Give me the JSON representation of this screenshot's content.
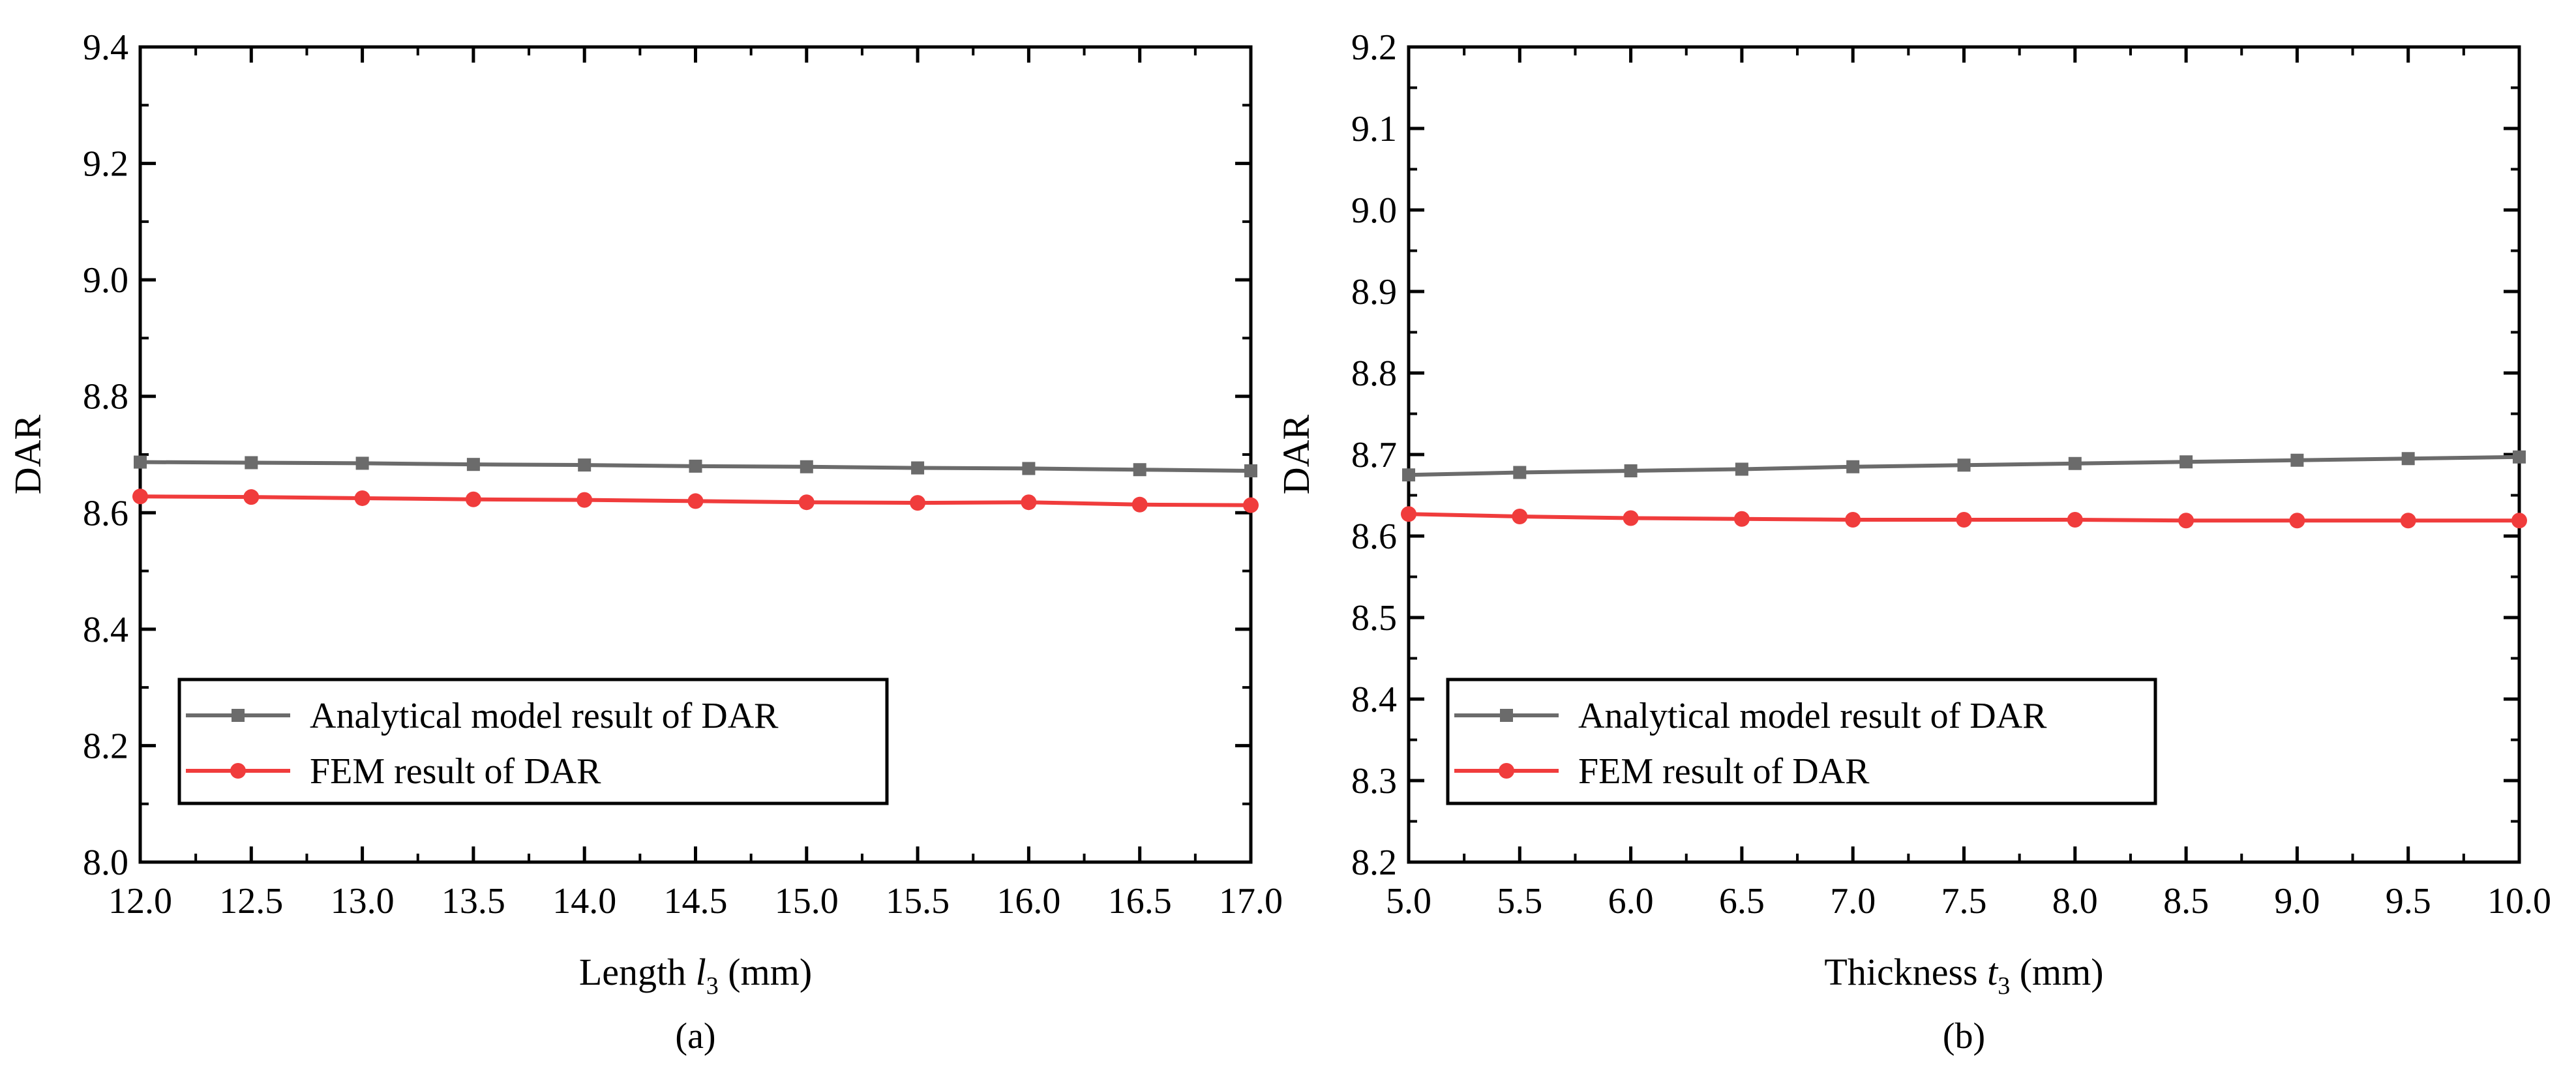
{
  "chart_data": [
    {
      "type": "line",
      "panel_label": "(a)",
      "xlabel": {
        "main": "Length ",
        "var": "l",
        "sub": "3",
        "unit": " (mm)"
      },
      "ylabel": "DAR",
      "xlim": [
        12.0,
        17.0
      ],
      "ylim": [
        8.0,
        9.4
      ],
      "xticks": [
        12.0,
        12.5,
        13.0,
        13.5,
        14.0,
        14.5,
        15.0,
        15.5,
        16.0,
        16.5,
        17.0
      ],
      "xtick_labels": [
        "12.0",
        "12.5",
        "13.0",
        "13.5",
        "14.0",
        "14.5",
        "15.0",
        "15.5",
        "16.0",
        "16.5",
        "17.0"
      ],
      "yticks": [
        8.0,
        8.2,
        8.4,
        8.6,
        8.8,
        9.0,
        9.2,
        9.4
      ],
      "ytick_labels": [
        "8.0",
        "8.2",
        "8.4",
        "8.6",
        "8.8",
        "9.0",
        "9.2",
        "9.4"
      ],
      "x": [
        12.0,
        12.5,
        13.0,
        13.5,
        14.0,
        14.5,
        15.0,
        15.5,
        16.0,
        16.5,
        17.0
      ],
      "series": [
        {
          "name": "Analytical model result of DAR",
          "color": "#6b6b6b",
          "marker": "square",
          "values": [
            8.687,
            8.686,
            8.685,
            8.683,
            8.682,
            8.68,
            8.679,
            8.677,
            8.676,
            8.674,
            8.672
          ]
        },
        {
          "name": "FEM result of DAR",
          "color": "#f03c3c",
          "marker": "circle",
          "values": [
            8.628,
            8.627,
            8.625,
            8.623,
            8.622,
            8.62,
            8.618,
            8.617,
            8.618,
            8.614,
            8.613
          ]
        }
      ],
      "legend_position": "lower-left"
    },
    {
      "type": "line",
      "panel_label": "(b)",
      "xlabel": {
        "main": "Thickness ",
        "var": "t",
        "sub": "3",
        "unit": " (mm)"
      },
      "ylabel": "DAR",
      "xlim": [
        5.0,
        10.0
      ],
      "ylim": [
        8.2,
        9.2
      ],
      "xticks": [
        5.0,
        5.5,
        6.0,
        6.5,
        7.0,
        7.5,
        8.0,
        8.5,
        9.0,
        9.5,
        10.0
      ],
      "xtick_labels": [
        "5.0",
        "5.5",
        "6.0",
        "6.5",
        "7.0",
        "7.5",
        "8.0",
        "8.5",
        "9.0",
        "9.5",
        "10.0"
      ],
      "yticks": [
        8.2,
        8.3,
        8.4,
        8.5,
        8.6,
        8.7,
        8.8,
        8.9,
        9.0,
        9.1,
        9.2
      ],
      "ytick_labels": [
        "8.2",
        "8.3",
        "8.4",
        "8.5",
        "8.6",
        "8.7",
        "8.8",
        "8.9",
        "9.0",
        "9.1",
        "9.2"
      ],
      "x": [
        5.0,
        5.5,
        6.0,
        6.5,
        7.0,
        7.5,
        8.0,
        8.5,
        9.0,
        9.5,
        10.0
      ],
      "series": [
        {
          "name": "Analytical model result of DAR",
          "color": "#6b6b6b",
          "marker": "square",
          "values": [
            8.675,
            8.678,
            8.68,
            8.682,
            8.685,
            8.687,
            8.689,
            8.691,
            8.693,
            8.695,
            8.697
          ]
        },
        {
          "name": "FEM result of DAR",
          "color": "#f03c3c",
          "marker": "circle",
          "values": [
            8.627,
            8.624,
            8.622,
            8.621,
            8.62,
            8.62,
            8.62,
            8.619,
            8.619,
            8.619,
            8.619
          ]
        }
      ],
      "legend_position": "lower-left"
    }
  ]
}
